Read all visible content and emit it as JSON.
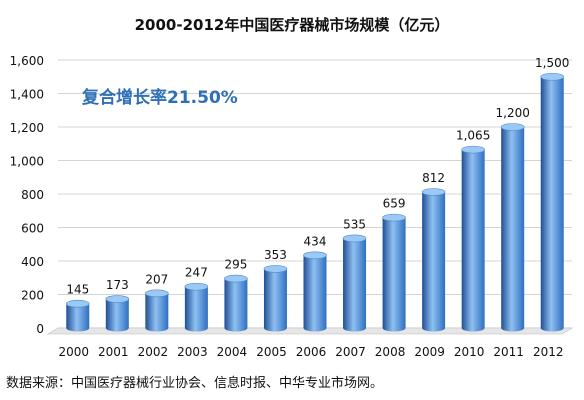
{
  "chart_data": {
    "type": "bar",
    "title": "2000-2012年中国医疗器械市场规模（亿元）",
    "categories": [
      "2000",
      "2001",
      "2002",
      "2003",
      "2004",
      "2005",
      "2006",
      "2007",
      "2008",
      "2009",
      "2010",
      "2011",
      "2012"
    ],
    "values": [
      145,
      173,
      207,
      247,
      295,
      353,
      434,
      535,
      659,
      812,
      1065,
      1200,
      1500
    ],
    "value_labels": [
      "145",
      "173",
      "207",
      "247",
      "295",
      "353",
      "434",
      "535",
      "659",
      "812",
      "1,065",
      "1,200",
      "1,500"
    ],
    "ylim": [
      0,
      1600
    ],
    "y_ticks": [
      0,
      200,
      400,
      600,
      800,
      1000,
      1200,
      1400,
      1600
    ],
    "y_tick_labels": [
      "0",
      "200",
      "400",
      "600",
      "800",
      "1,000",
      "1,200",
      "1,400",
      "1,600"
    ],
    "xlabel": "",
    "ylabel": "",
    "grid": true,
    "annotation": "复合增长率21.50%",
    "bar_color": "#2f6fc0",
    "bar_color_light": "#8fc0f2",
    "annotation_color": "#2f6fb5"
  },
  "source_note": "数据来源：中国医疗器械行业协会、信息时报、中华专业市场网。"
}
